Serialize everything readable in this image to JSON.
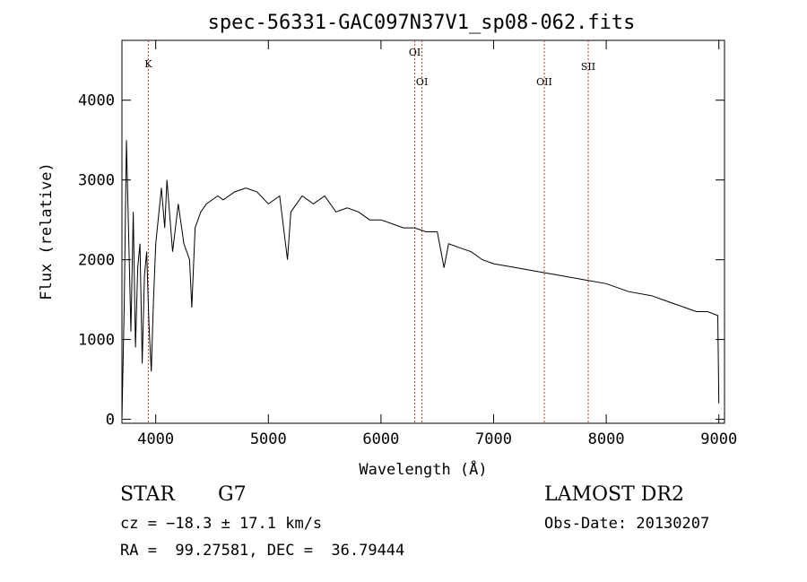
{
  "chart_data": {
    "type": "line",
    "title": "spec-56331-GAC097N37V1_sp08-062.fits",
    "xlabel": "Wavelength (Å)",
    "ylabel": "Flux (relative)",
    "xlim": [
      3700,
      9050
    ],
    "ylim": [
      -50,
      4750
    ],
    "xticks": [
      4000,
      5000,
      6000,
      7000,
      8000,
      9000
    ],
    "yticks": [
      0,
      1000,
      2000,
      3000,
      4000
    ],
    "grid": false,
    "line_color": "#000000",
    "marker_color": "#c0392b",
    "series": [
      {
        "x": [
          3700,
          3720,
          3740,
          3760,
          3780,
          3800,
          3820,
          3840,
          3860,
          3880,
          3900,
          3920,
          3940,
          3960,
          3980,
          4000,
          4050,
          4080,
          4100,
          4150,
          4200,
          4250,
          4300,
          4320,
          4350,
          4400,
          4450,
          4500,
          4550,
          4600,
          4700,
          4800,
          4900,
          5000,
          5100,
          5170,
          5200,
          5300,
          5400,
          5500,
          5600,
          5700,
          5800,
          5900,
          6000,
          6100,
          6200,
          6300,
          6400,
          6500,
          6560,
          6600,
          6700,
          6800,
          6900,
          7000,
          7200,
          7400,
          7600,
          7800,
          8000,
          8200,
          8400,
          8500,
          8600,
          8700,
          8800,
          8900,
          8990,
          9000
        ],
        "y": [
          0,
          1400,
          3500,
          2300,
          1100,
          2600,
          900,
          1900,
          2200,
          700,
          1800,
          2100,
          1200,
          600,
          1500,
          2200,
          2900,
          2400,
          3000,
          2100,
          2700,
          2200,
          2000,
          1400,
          2400,
          2600,
          2700,
          2750,
          2800,
          2750,
          2850,
          2900,
          2850,
          2700,
          2800,
          2000,
          2600,
          2800,
          2700,
          2800,
          2600,
          2650,
          2600,
          2500,
          2500,
          2450,
          2400,
          2400,
          2350,
          2350,
          1900,
          2200,
          2150,
          2100,
          2000,
          1950,
          1900,
          1850,
          1800,
          1750,
          1700,
          1600,
          1550,
          1500,
          1450,
          1400,
          1350,
          1350,
          1300,
          200
        ]
      }
    ],
    "lines": [
      {
        "label": "K",
        "x": 3934
      },
      {
        "label": "OI",
        "x": 6300
      },
      {
        "label": "OI",
        "x": 6364
      },
      {
        "label": "OII",
        "x": 7450
      },
      {
        "label": "SII",
        "x": 7840
      }
    ]
  },
  "info": {
    "object_class": "STAR",
    "subclass": "G7",
    "survey": "LAMOST DR2",
    "cz": "cz = −18.3 ± 17.1 km/s",
    "obs_date": "Obs-Date: 20130207",
    "coords": "RA =  99.27581, DEC =  36.79444"
  }
}
